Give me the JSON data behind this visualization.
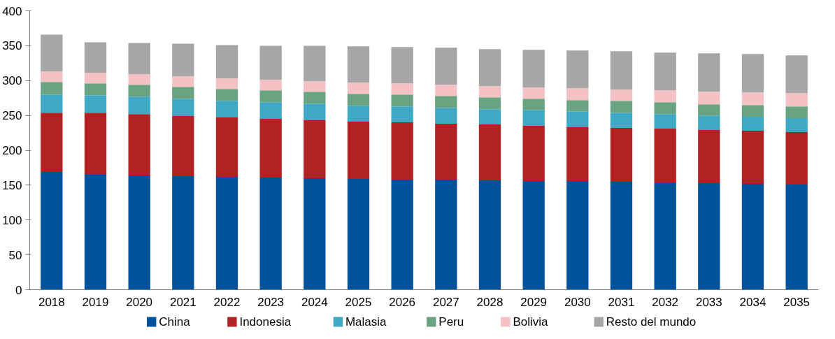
{
  "chart_data": {
    "type": "bar",
    "stacked": true,
    "legend": "bottom",
    "grid": false,
    "categories": [
      "2018",
      "2019",
      "2020",
      "2021",
      "2022",
      "2023",
      "2024",
      "2025",
      "2026",
      "2027",
      "2028",
      "2029",
      "2030",
      "2031",
      "2032",
      "2033",
      "2034",
      "2035"
    ],
    "ylim": [
      0,
      400
    ],
    "yticks": [
      0,
      50,
      100,
      150,
      200,
      250,
      300,
      350,
      400
    ],
    "series": [
      {
        "name": "China",
        "color": "#00529b",
        "values": [
          169,
          166,
          164,
          163,
          162,
          161,
          160,
          159,
          158,
          158,
          157,
          156,
          156,
          155,
          154,
          153,
          152,
          151
        ]
      },
      {
        "name": "Indonesia",
        "color": "#b22222",
        "values": [
          85,
          88,
          88,
          86,
          85,
          84,
          83,
          82,
          82,
          80,
          80,
          79,
          77,
          77,
          77,
          76,
          76,
          75
        ]
      },
      {
        "name": "Malasia",
        "color": "#3fa9c5",
        "values": [
          26,
          25,
          25,
          25,
          24,
          24,
          24,
          23,
          23,
          23,
          22,
          23,
          23,
          22,
          21,
          21,
          20,
          20
        ]
      },
      {
        "name": "Peru",
        "color": "#6aa382",
        "values": [
          18,
          17,
          17,
          17,
          17,
          17,
          17,
          17,
          17,
          17,
          17,
          16,
          16,
          17,
          17,
          16,
          17,
          17
        ]
      },
      {
        "name": "Bolivia",
        "color": "#f4c2c5",
        "values": [
          15,
          15,
          15,
          15,
          15,
          15,
          15,
          16,
          16,
          16,
          16,
          16,
          17,
          16,
          17,
          18,
          18,
          19
        ]
      },
      {
        "name": "Resto del mundo",
        "color": "#a6a6a6",
        "values": [
          53,
          44,
          45,
          47,
          48,
          49,
          51,
          52,
          52,
          53,
          53,
          54,
          54,
          55,
          54,
          55,
          55,
          54
        ]
      }
    ]
  }
}
